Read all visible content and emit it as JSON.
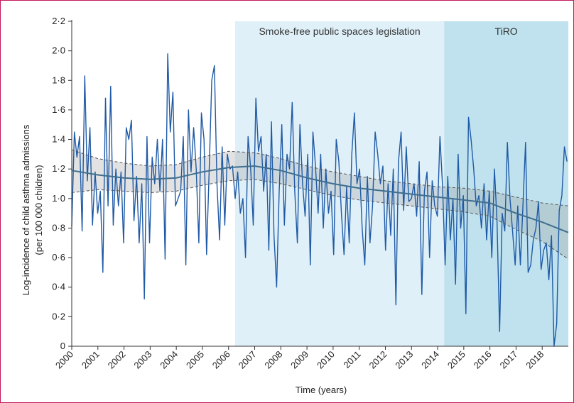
{
  "chart_data": {
    "type": "line",
    "title": "",
    "xlabel": "Time (years)",
    "ylabel_lines": [
      "Log-incidence of child asthma admissions",
      "(per 100 000 children)"
    ],
    "xlim": [
      2000,
      2019
    ],
    "ylim": [
      0,
      2.2
    ],
    "x_ticks": [
      "2000",
      "2001",
      "2002",
      "2003",
      "2004",
      "2005",
      "2006",
      "2007",
      "2008",
      "2009",
      "2010",
      "2011",
      "2012",
      "2013",
      "2014",
      "2015",
      "2016",
      "2017",
      "2018"
    ],
    "y_ticks": [
      "0",
      "0·2",
      "0·4",
      "0·6",
      "0·8",
      "1·0",
      "1·2",
      "1·4",
      "1·6",
      "1·8",
      "2·0",
      "2·2"
    ],
    "regions": [
      {
        "label": "Smoke-free public spaces legislation",
        "start": 2006.25,
        "end": 2014.25,
        "color": "#dff0f8"
      },
      {
        "label": "TiRO",
        "start": 2014.25,
        "end": 2019,
        "color": "#bfe2ee"
      }
    ],
    "series": [
      {
        "name": "",
        "color": "#1f5aa6",
        "y": [
          0.81,
          1.45,
          1.28,
          1.42,
          0.78,
          1.83,
          1.12,
          1.48,
          0.82,
          1.18,
          0.9,
          1.05,
          0.5,
          1.68,
          0.95,
          1.76,
          0.82,
          1.2,
          0.95,
          1.18,
          0.7,
          1.48,
          1.4,
          1.53,
          0.85,
          1.15,
          0.7,
          1.1,
          0.32,
          1.42,
          0.7,
          1.28,
          1.1,
          1.4,
          1.05,
          1.4,
          0.59,
          1.98,
          1.45,
          1.72,
          0.95,
          1.0,
          1.05,
          1.42,
          0.55,
          1.6,
          1.18,
          1.48,
          1.2,
          0.7,
          1.58,
          1.4,
          0.62,
          1.2,
          1.8,
          1.9,
          1.1,
          0.72,
          1.35,
          0.82,
          1.3,
          1.2,
          1.22,
          1.0,
          1.18,
          0.9,
          1.0,
          0.6,
          1.42,
          1.2,
          0.82,
          1.68,
          1.32,
          1.42,
          1.05,
          1.3,
          0.65,
          1.52,
          0.75,
          0.4,
          1.05,
          1.5,
          0.82,
          1.3,
          1.2,
          1.65,
          1.05,
          0.7,
          1.5,
          1.1,
          0.88,
          1.3,
          0.55,
          1.45,
          1.22,
          0.9,
          1.3,
          0.8,
          1.2,
          0.9,
          1.05,
          0.62,
          1.4,
          1.25,
          0.9,
          0.62,
          1.08,
          0.7,
          1.3,
          1.58,
          1.1,
          1.2,
          0.8,
          0.55,
          1.15,
          0.7,
          0.95,
          1.45,
          1.3,
          1.1,
          1.22,
          0.65,
          1.1,
          0.75,
          1.2,
          0.28,
          1.25,
          1.45,
          0.92,
          1.35,
          0.98,
          1.0,
          1.1,
          0.88,
          1.25,
          0.35,
          1.05,
          1.18,
          0.6,
          1.12,
          0.95,
          0.88,
          1.42,
          1.08,
          0.55,
          1.15,
          0.72,
          1.0,
          0.42,
          1.3,
          0.8,
          1.02,
          0.22,
          1.55,
          1.4,
          1.2,
          0.95,
          1.02,
          0.8,
          1.1,
          0.72,
          1.05,
          0.6,
          1.2,
          0.85,
          0.1,
          0.9,
          0.78,
          1.38,
          1.0,
          0.78,
          0.55,
          0.95,
          0.55,
          0.95,
          1.38,
          0.5,
          0.55,
          0.72,
          0.8,
          0.98,
          0.52,
          0.65,
          0.7,
          0.45,
          0.75,
          0.0,
          0.15,
          0.92,
          1.02,
          1.35,
          1.25
        ]
      },
      {
        "name": "",
        "color": "#3f6f8f",
        "style": "trend",
        "x": [
          2000,
          2001,
          2002,
          2003,
          2004,
          2005,
          2006,
          2007,
          2008,
          2009,
          2010,
          2011,
          2012,
          2013,
          2014,
          2015,
          2016,
          2017,
          2018,
          2019
        ],
        "y": [
          1.19,
          1.16,
          1.14,
          1.13,
          1.14,
          1.18,
          1.21,
          1.22,
          1.19,
          1.14,
          1.1,
          1.07,
          1.05,
          1.03,
          1.01,
          0.99,
          0.97,
          0.9,
          0.84,
          0.77
        ]
      },
      {
        "name": "",
        "color": "#555555",
        "style": "dashed",
        "x": [
          2000,
          2001,
          2002,
          2003,
          2004,
          2005,
          2006,
          2007,
          2008,
          2009,
          2010,
          2011,
          2012,
          2013,
          2014,
          2015,
          2016,
          2017,
          2018,
          2019
        ],
        "y": [
          1.33,
          1.27,
          1.24,
          1.22,
          1.23,
          1.28,
          1.32,
          1.31,
          1.27,
          1.22,
          1.18,
          1.15,
          1.12,
          1.1,
          1.08,
          1.07,
          1.05,
          1.01,
          0.97,
          0.95
        ]
      },
      {
        "name": "",
        "color": "#555555",
        "style": "dashed",
        "x": [
          2000,
          2001,
          2002,
          2003,
          2004,
          2005,
          2006,
          2007,
          2008,
          2009,
          2010,
          2011,
          2012,
          2013,
          2014,
          2015,
          2016,
          2017,
          2018,
          2019
        ],
        "y": [
          1.04,
          1.06,
          1.05,
          1.04,
          1.05,
          1.09,
          1.12,
          1.13,
          1.1,
          1.06,
          1.02,
          0.99,
          0.97,
          0.95,
          0.93,
          0.91,
          0.88,
          0.79,
          0.71,
          0.59
        ]
      }
    ]
  }
}
